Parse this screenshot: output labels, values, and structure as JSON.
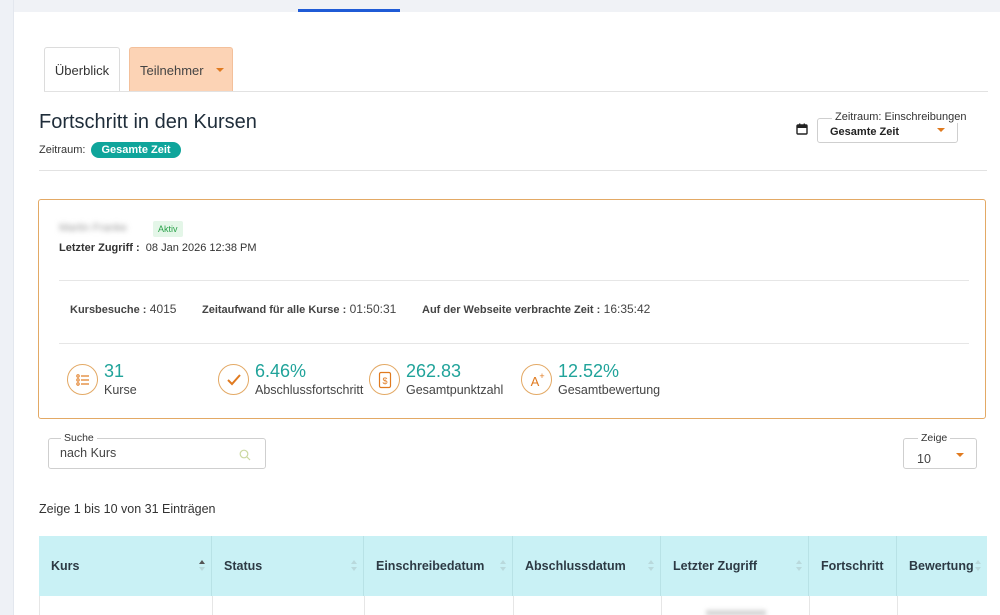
{
  "tabs": [
    {
      "label": "Überblick"
    },
    {
      "label": "Teilnehmer"
    }
  ],
  "page": {
    "title": "Fortschritt in den Kursen",
    "zeitraum_label": "Zeitraum:",
    "zeitraum_badge": "Gesamte Zeit"
  },
  "period_filter": {
    "legend": "Zeitraum: Einschreibungen",
    "value": "Gesamte Zeit"
  },
  "user": {
    "name": "Martin Franke",
    "status": "Aktiv",
    "last_access_label": "Letzter Zugriff :",
    "last_access_value": "08 Jan 2026 12:38 PM"
  },
  "stats": {
    "visits_label": "Kursbesuche :",
    "visits_value": "4015",
    "time_label": "Zeitaufwand für alle Kurse :",
    "time_value": "01:50:31",
    "web_label": "Auf der Webseite verbrachte Zeit :",
    "web_value": "16:35:42"
  },
  "metrics": [
    {
      "value": "31",
      "label": "Kurse",
      "icon": "course-list-icon"
    },
    {
      "value": "6.46%",
      "label": "Abschlussfortschritt",
      "icon": "checkmark-icon"
    },
    {
      "value": "262.83",
      "label": "Gesamtpunktzahl",
      "icon": "score-document-icon"
    },
    {
      "value": "12.52%",
      "label": "Gesamtbewertung",
      "icon": "grade-a-plus-icon"
    }
  ],
  "search": {
    "legend": "Suche",
    "placeholder": "nach Kurs"
  },
  "show": {
    "legend": "Zeige",
    "value": "10"
  },
  "entries_info": "Zeige 1 bis 10 von 31 Einträgen",
  "table": {
    "columns": [
      "Kurs",
      "Status",
      "Einschreibedatum",
      "Abschlussdatum",
      "Letzter Zugriff",
      "Fortschritt",
      "Bewertung"
    ]
  },
  "colors": {
    "accent_teal": "#0fa59b",
    "accent_orange": "#e07a1f",
    "tab_active_bg": "#fcd3b5",
    "table_header_bg": "#c9f1f5",
    "card_border": "#e3a965"
  }
}
